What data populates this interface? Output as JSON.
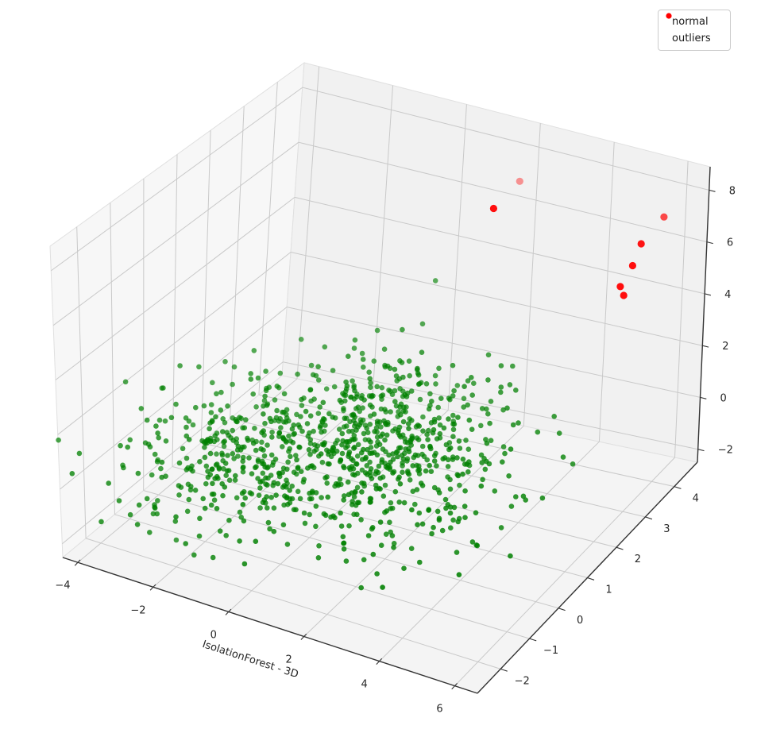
{
  "chart_data": {
    "type": "scatter",
    "projection": "3d",
    "title": "",
    "xlabel": "IsolationForest - 3D",
    "ylabel": "",
    "zlabel": "",
    "grid": true,
    "axes": {
      "x": {
        "ticks": [
          -4,
          -2,
          0,
          2,
          4,
          6
        ],
        "range": [
          -4.4,
          6.6
        ]
      },
      "y": {
        "ticks": [
          -2,
          -1,
          0,
          1,
          2,
          3,
          4
        ],
        "range": [
          -2.8,
          4.8
        ]
      },
      "z": {
        "ticks": [
          -2,
          0,
          2,
          4,
          6,
          8
        ],
        "range": [
          -2.5,
          8.9
        ]
      }
    },
    "legend": {
      "position": "upper right",
      "entries": [
        {
          "label": "normal",
          "color": "#008000",
          "marker_radius": 2.6
        },
        {
          "label": "outliers",
          "color": "#ff0000",
          "marker_radius": 3.6
        }
      ]
    },
    "series": [
      {
        "name": "normal",
        "color": "#008000",
        "marker_radius": 3.3,
        "count": 1000,
        "distribution": "gaussian_blobs",
        "seed": 42,
        "blobs": [
          {
            "n": 500,
            "center": [
              1.2,
              0.7,
              -0.1
            ],
            "sigma": [
              1.5,
              1.2,
              0.95
            ]
          },
          {
            "n": 300,
            "center": [
              -1.9,
              -0.2,
              0.1
            ],
            "sigma": [
              1.15,
              1.05,
              0.85
            ]
          },
          {
            "n": 200,
            "center": [
              0.2,
              2.1,
              0.3
            ],
            "sigma": [
              1.25,
              0.95,
              0.85
            ]
          }
        ]
      },
      {
        "name": "outliers",
        "color": "#ff0000",
        "marker_radius": 4.6,
        "points": [
          {
            "x": 2.0,
            "y": 4.2,
            "z": 7.3,
            "alpha": 0.4
          },
          {
            "x": 1.5,
            "y": 4.0,
            "z": 6.3,
            "alpha": 0.95
          },
          {
            "x": 5.8,
            "y": 4.3,
            "z": 7.2,
            "alpha": 0.7
          },
          {
            "x": 5.3,
            "y": 4.2,
            "z": 6.1,
            "alpha": 0.92
          },
          {
            "x": 5.1,
            "y": 4.2,
            "z": 5.2,
            "alpha": 0.95
          },
          {
            "x": 4.8,
            "y": 4.2,
            "z": 4.3,
            "alpha": 0.95
          },
          {
            "x": 4.9,
            "y": 4.2,
            "z": 4.0,
            "alpha": 0.95
          }
        ]
      }
    ],
    "colors": {
      "pane_left": "#f7f7f7",
      "pane_back": "#f1f1f1",
      "pane_bottom": "#f4f4f4",
      "pane_edge": "#e0e0e0",
      "gridline": "#c9c9c9",
      "spine": "#333333",
      "tick_label": "#262626"
    }
  }
}
